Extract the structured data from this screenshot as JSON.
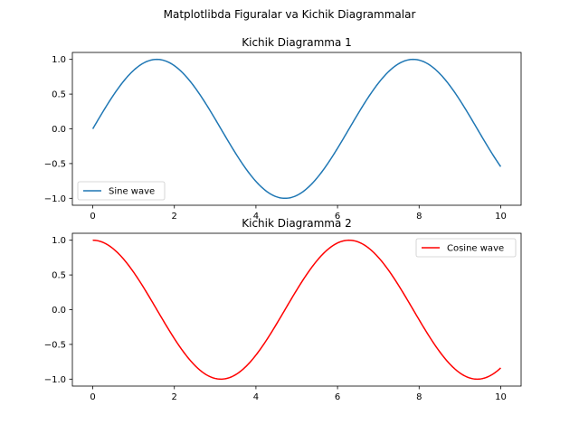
{
  "figure": {
    "suptitle": "Matplotlibda Figuralar va Kichik Diagrammalar"
  },
  "chart_data": [
    {
      "type": "line",
      "title": "Kichik Diagramma 1",
      "xlabel": "",
      "ylabel": "",
      "xlim": [
        -0.5,
        10.5
      ],
      "ylim": [
        -1.1,
        1.1
      ],
      "xticks": [
        0,
        2,
        4,
        6,
        8,
        10
      ],
      "yticks": [
        -1.0,
        -0.5,
        0.0,
        0.5,
        1.0
      ],
      "xtick_labels": [
        "0",
        "2",
        "4",
        "6",
        "8",
        "10"
      ],
      "ytick_labels": [
        "−1.0",
        "−0.5",
        "0.0",
        "0.5",
        "1.0"
      ],
      "grid": false,
      "legend_position": "lower-left",
      "function": "sin",
      "x_range": [
        0,
        10
      ],
      "series": [
        {
          "name": "Sine wave",
          "color": "#1f77b4",
          "x": [
            0,
            0.5,
            1,
            1.5,
            2,
            2.5,
            3,
            3.5,
            4,
            4.5,
            5,
            5.5,
            6,
            6.5,
            7,
            7.5,
            8,
            8.5,
            9,
            9.5,
            10
          ],
          "y": [
            0.0,
            0.48,
            0.84,
            1.0,
            0.91,
            0.6,
            0.14,
            -0.35,
            -0.76,
            -0.98,
            -0.96,
            -0.71,
            -0.28,
            0.22,
            0.66,
            0.94,
            0.99,
            0.8,
            0.41,
            -0.08,
            -0.54
          ]
        }
      ]
    },
    {
      "type": "line",
      "title": "Kichik Diagramma 2",
      "xlabel": "",
      "ylabel": "",
      "xlim": [
        -0.5,
        10.5
      ],
      "ylim": [
        -1.1,
        1.1
      ],
      "xticks": [
        0,
        2,
        4,
        6,
        8,
        10
      ],
      "yticks": [
        -1.0,
        -0.5,
        0.0,
        0.5,
        1.0
      ],
      "xtick_labels": [
        "0",
        "2",
        "4",
        "6",
        "8",
        "10"
      ],
      "ytick_labels": [
        "−1.0",
        "−0.5",
        "0.0",
        "0.5",
        "1.0"
      ],
      "grid": false,
      "legend_position": "upper-right",
      "function": "cos",
      "x_range": [
        0,
        10
      ],
      "series": [
        {
          "name": "Cosine wave",
          "color": "#ff0000",
          "x": [
            0,
            0.5,
            1,
            1.5,
            2,
            2.5,
            3,
            3.5,
            4,
            4.5,
            5,
            5.5,
            6,
            6.5,
            7,
            7.5,
            8,
            8.5,
            9,
            9.5,
            10
          ],
          "y": [
            1.0,
            0.88,
            0.54,
            0.07,
            -0.42,
            -0.8,
            -0.99,
            -0.94,
            -0.65,
            -0.21,
            0.28,
            0.71,
            0.96,
            0.98,
            0.75,
            0.35,
            -0.15,
            -0.6,
            -0.91,
            -1.0,
            -0.84
          ]
        }
      ]
    }
  ]
}
